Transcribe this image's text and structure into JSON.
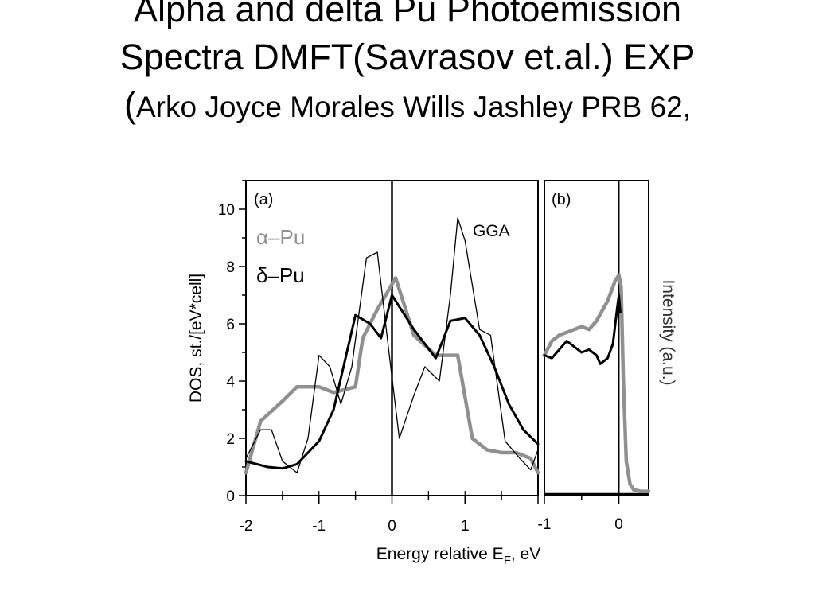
{
  "slide": {
    "title_line1": "Alpha and delta Pu Photoemission",
    "title_line2": "Spectra DMFT(Savrasov et.al.) EXP",
    "title_line3_paren": "(",
    "title_line3": "Arko Joyce Morales Wills Jashley PRB 62,"
  },
  "chart_data": [
    {
      "type": "line",
      "panel_label": "(a)",
      "xlabel": "Energy relative E",
      "xlabel_sub": "F",
      "xlabel_suffix": ", eV",
      "ylabel": "DOS, st./[eV*cell]",
      "xlim": [
        -2,
        2
      ],
      "ylim": [
        0,
        11
      ],
      "xticks": [
        -2,
        -1,
        0,
        1
      ],
      "yticks": [
        0,
        2,
        4,
        6,
        8,
        10
      ],
      "annotation": "GGA",
      "legend_position": "top-left",
      "vertical_line_x": 0,
      "series": [
        {
          "name": "α–Pu",
          "color": "#909090",
          "style": "thick",
          "x": [
            -2.0,
            -1.8,
            -1.5,
            -1.3,
            -1.0,
            -0.8,
            -0.5,
            -0.4,
            -0.2,
            0.05,
            0.3,
            0.6,
            0.9,
            1.1,
            1.3,
            1.5,
            1.7,
            1.9,
            2.0
          ],
          "y": [
            0.8,
            2.6,
            3.3,
            3.8,
            3.8,
            3.6,
            3.8,
            5.5,
            6.5,
            7.6,
            5.6,
            4.9,
            4.9,
            2.0,
            1.6,
            1.5,
            1.5,
            1.3,
            0.8
          ]
        },
        {
          "name": "δ–Pu",
          "color": "#000000",
          "style": "medium",
          "x": [
            -2.0,
            -1.7,
            -1.5,
            -1.3,
            -1.0,
            -0.8,
            -0.5,
            -0.3,
            -0.15,
            0.0,
            0.3,
            0.6,
            0.8,
            1.0,
            1.2,
            1.4,
            1.6,
            1.8,
            2.0
          ],
          "y": [
            1.2,
            1.0,
            0.95,
            1.1,
            1.9,
            3.0,
            6.3,
            6.0,
            5.5,
            7.0,
            5.8,
            4.8,
            6.1,
            6.2,
            5.6,
            4.5,
            3.2,
            2.3,
            1.8
          ]
        },
        {
          "name": "GGA",
          "color": "#000000",
          "style": "thin",
          "x": [
            -2.0,
            -1.8,
            -1.65,
            -1.5,
            -1.3,
            -1.15,
            -1.0,
            -0.85,
            -0.7,
            -0.55,
            -0.35,
            -0.2,
            -0.05,
            0.1,
            0.3,
            0.45,
            0.65,
            0.8,
            0.9,
            1.0,
            1.2,
            1.35,
            1.55,
            1.75,
            1.9,
            2.0
          ],
          "y": [
            1.3,
            2.3,
            2.3,
            1.2,
            0.8,
            2.0,
            4.9,
            4.5,
            3.2,
            4.5,
            8.3,
            8.5,
            5.2,
            2.0,
            3.5,
            4.5,
            4.0,
            7.0,
            9.7,
            8.9,
            5.8,
            5.6,
            1.9,
            1.3,
            0.9,
            1.6
          ]
        }
      ]
    },
    {
      "type": "line",
      "panel_label": "(b)",
      "ylabel_right": "Intensity (a.u.)",
      "xlim": [
        -1,
        0.4
      ],
      "ylim": [
        0,
        11
      ],
      "xticks": [
        -1,
        0
      ],
      "vertical_line_x": 0,
      "series": [
        {
          "name": "α–Pu",
          "color": "#909090",
          "style": "thick",
          "x": [
            -1.0,
            -0.9,
            -0.8,
            -0.7,
            -0.6,
            -0.5,
            -0.4,
            -0.3,
            -0.15,
            -0.05,
            0.0,
            0.03,
            0.06,
            0.1,
            0.15,
            0.2,
            0.3,
            0.4
          ],
          "y": [
            4.9,
            5.4,
            5.6,
            5.7,
            5.8,
            5.9,
            5.8,
            6.1,
            6.8,
            7.5,
            7.7,
            7.3,
            4.0,
            1.2,
            0.4,
            0.2,
            0.15,
            0.15
          ]
        },
        {
          "name": "δ–Pu",
          "color": "#000000",
          "style": "medium",
          "x": [
            -1.0,
            -0.9,
            -0.8,
            -0.7,
            -0.6,
            -0.5,
            -0.4,
            -0.3,
            -0.25,
            -0.15,
            -0.08,
            -0.02,
            0.0,
            0.02
          ],
          "y": [
            4.9,
            4.8,
            5.1,
            5.4,
            5.2,
            5.0,
            5.1,
            4.9,
            4.6,
            4.8,
            5.3,
            6.6,
            7.0,
            6.4
          ]
        }
      ]
    }
  ]
}
